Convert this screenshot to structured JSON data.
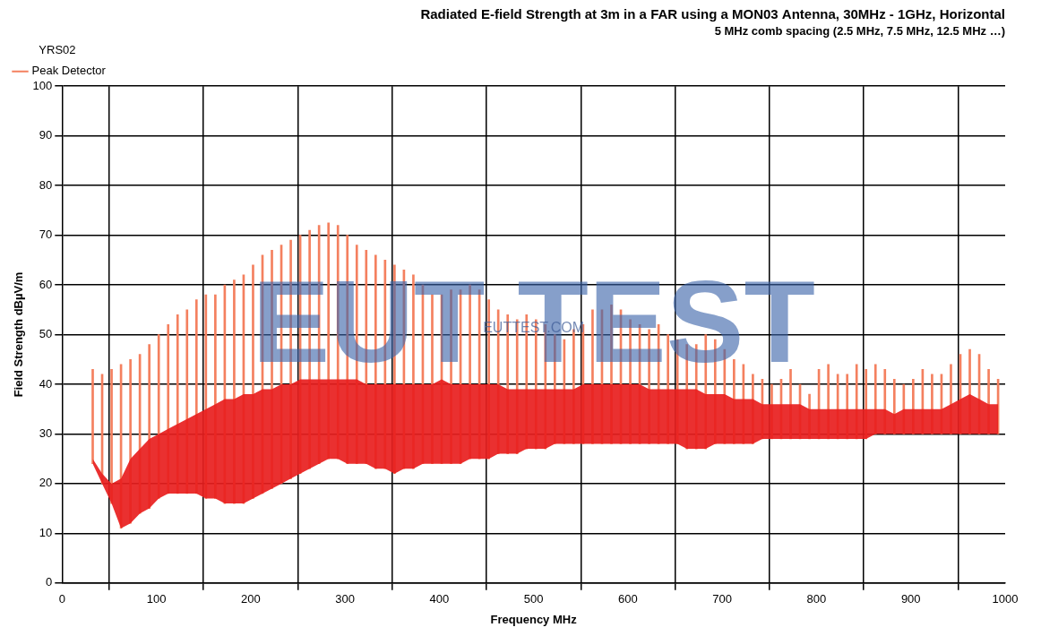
{
  "chart_data": {
    "type": "bar",
    "title": "Radiated E-field Strength at 3m in a FAR using a MON03 Antenna, 30MHz - 1GHz, Horizontal",
    "subtitle": "5 MHz comb spacing (2.5 MHz, 7.5 MHz, 12.5 MHz …)",
    "x_label": "Frequency MHz",
    "y_label": "Field Strength dBµV/m",
    "annotations": [
      "EUT TEST",
      "EUTTEST.COM"
    ],
    "legend_title": "YRS02",
    "legend": "top-left",
    "grid": true,
    "xlim": [
      0,
      1000
    ],
    "xticks": [
      0,
      100,
      200,
      300,
      400,
      500,
      600,
      700,
      800,
      900,
      1000
    ],
    "ylim": [
      0,
      100
    ],
    "yticks": [
      0,
      10,
      20,
      30,
      40,
      50,
      60,
      70,
      80,
      90,
      100
    ],
    "x": [
      32.5,
      42.5,
      52.5,
      62.5,
      72.5,
      82.5,
      92.5,
      102.5,
      112.5,
      122.5,
      132.5,
      142.5,
      152.5,
      162.5,
      172.5,
      182.5,
      192.5,
      202.5,
      212.5,
      222.5,
      232.5,
      242.5,
      252.5,
      262.5,
      272.5,
      282.5,
      292.5,
      302.5,
      312.5,
      322.5,
      332.5,
      342.5,
      352.5,
      362.5,
      372.5,
      382.5,
      392.5,
      402.5,
      412.5,
      422.5,
      432.5,
      442.5,
      452.5,
      462.5,
      472.5,
      482.5,
      492.5,
      502.5,
      512.5,
      522.5,
      532.5,
      542.5,
      552.5,
      562.5,
      572.5,
      582.5,
      592.5,
      602.5,
      612.5,
      622.5,
      632.5,
      642.5,
      652.5,
      662.5,
      672.5,
      682.5,
      692.5,
      702.5,
      712.5,
      722.5,
      732.5,
      742.5,
      752.5,
      762.5,
      772.5,
      782.5,
      792.5,
      802.5,
      812.5,
      822.5,
      832.5,
      842.5,
      852.5,
      862.5,
      872.5,
      882.5,
      892.5,
      902.5,
      912.5,
      922.5,
      932.5,
      942.5,
      952.5,
      962.5,
      972.5,
      982.5,
      992.5
    ],
    "series": [
      {
        "name": "Peak Detector",
        "color": "#f4805f",
        "values": [
          43,
          42,
          43,
          44,
          45,
          46,
          48,
          50,
          52,
          54,
          55,
          57,
          58,
          58,
          60,
          61,
          62,
          64,
          66,
          67,
          68,
          69,
          70,
          71,
          72,
          72.5,
          72,
          70,
          68,
          67,
          66,
          65,
          64,
          63,
          62,
          60,
          58,
          58,
          59,
          59,
          60,
          59,
          57,
          55,
          54,
          53,
          54,
          53,
          52,
          50,
          49,
          51,
          52,
          55,
          55,
          56,
          55,
          53,
          52,
          51,
          52,
          50,
          49,
          48,
          48,
          50,
          49,
          47,
          45,
          44,
          42,
          41,
          40,
          41,
          43,
          40,
          38,
          43,
          44,
          42,
          42,
          44,
          43,
          44,
          43,
          41,
          40,
          41,
          43,
          42,
          42,
          44,
          46,
          47,
          46,
          43,
          41
        ],
        "low": [
          24,
          20,
          16,
          11,
          12,
          14,
          15,
          17,
          18,
          18,
          18,
          18,
          17,
          17,
          16,
          16,
          16,
          17,
          18,
          19,
          20,
          21,
          22,
          23,
          24,
          25,
          25,
          24,
          24,
          24,
          23,
          23,
          22,
          23,
          23,
          24,
          24,
          24,
          24,
          24,
          25,
          25,
          25,
          26,
          26,
          26,
          27,
          27,
          27,
          28,
          28,
          28,
          28,
          28,
          28,
          28,
          28,
          28,
          28,
          28,
          28,
          28,
          28,
          27,
          27,
          27,
          28,
          28,
          28,
          28,
          28,
          29,
          29,
          29,
          29,
          29,
          29,
          29,
          29,
          29,
          29,
          29,
          29,
          30,
          30,
          30,
          30,
          30,
          30,
          30,
          30,
          30,
          30,
          30,
          30,
          30,
          30
        ],
        "band": [
          25,
          22,
          20,
          21,
          25,
          27,
          29,
          30,
          31,
          32,
          33,
          34,
          35,
          36,
          37,
          37,
          38,
          38,
          39,
          39,
          40,
          40,
          41,
          41,
          41,
          41,
          41,
          41,
          41,
          40,
          40,
          40,
          40,
          40,
          40,
          40,
          40,
          41,
          40,
          40,
          40,
          40,
          40,
          40,
          39,
          39,
          39,
          39,
          39,
          39,
          39,
          39,
          40,
          40,
          40,
          40,
          40,
          40,
          40,
          39,
          39,
          39,
          39,
          39,
          39,
          38,
          38,
          38,
          37,
          37,
          37,
          36,
          36,
          36,
          36,
          36,
          35,
          35,
          35,
          35,
          35,
          35,
          35,
          35,
          35,
          34,
          35,
          35,
          35,
          35,
          35,
          36,
          37,
          38,
          37,
          36,
          36
        ]
      }
    ]
  }
}
